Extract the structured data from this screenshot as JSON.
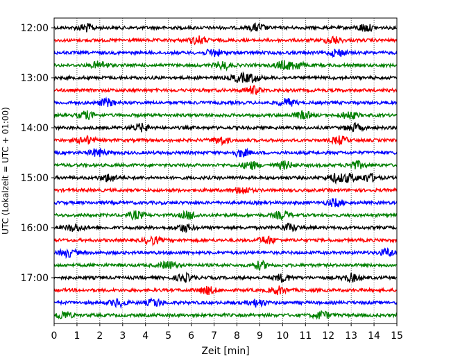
{
  "chart_data": {
    "type": "line",
    "title": "",
    "xlabel": "Zeit  [min]",
    "ylabel": "UTC (Lokalzeit = UTC + 01:00)",
    "xlim": [
      0,
      15
    ],
    "x_ticks": [
      0,
      1,
      2,
      3,
      4,
      5,
      6,
      7,
      8,
      9,
      10,
      11,
      12,
      13,
      14,
      15
    ],
    "y_tick_labels": [
      "12:00",
      "13:00",
      "14:00",
      "15:00",
      "16:00",
      "17:00"
    ],
    "grid": "vertical dotted",
    "legend": "none",
    "trace_interval_min": 15,
    "trace_start": "12:00",
    "trace_colors": [
      "#000000",
      "#ff0000",
      "#0000ff",
      "#008000"
    ],
    "traces": [
      {
        "start": "12:00",
        "events_min": [
          1.4,
          8.9,
          13.6
        ]
      },
      {
        "start": "12:15",
        "events_min": [
          6.3,
          12.2
        ]
      },
      {
        "start": "12:30",
        "events_min": [
          7.0,
          12.4
        ]
      },
      {
        "start": "12:45",
        "events_min": [
          2.0,
          7.4,
          10.0,
          10.6
        ]
      },
      {
        "start": "13:00",
        "events_min": [
          8.1,
          8.7
        ]
      },
      {
        "start": "13:15",
        "events_min": [
          8.7
        ]
      },
      {
        "start": "13:30",
        "events_min": [
          2.3,
          10.2
        ]
      },
      {
        "start": "13:45",
        "events_min": [
          1.4,
          10.9,
          12.9
        ]
      },
      {
        "start": "14:00",
        "events_min": [
          3.8,
          13.1
        ]
      },
      {
        "start": "14:15",
        "events_min": [
          1.4,
          7.3,
          12.5
        ]
      },
      {
        "start": "14:30",
        "events_min": [
          1.9,
          8.2
        ]
      },
      {
        "start": "14:45",
        "events_min": [
          8.6,
          10.1,
          13.2
        ]
      },
      {
        "start": "15:00",
        "events_min": [
          2.4,
          12.3,
          12.9,
          13.8
        ]
      },
      {
        "start": "15:15",
        "events_min": [
          8.2
        ]
      },
      {
        "start": "15:30",
        "events_min": [
          12.3
        ]
      },
      {
        "start": "15:45",
        "events_min": [
          3.6,
          5.9,
          10.0
        ]
      },
      {
        "start": "16:00",
        "events_min": [
          0.9,
          5.7,
          10.3
        ]
      },
      {
        "start": "16:15",
        "events_min": [
          4.3,
          9.3
        ]
      },
      {
        "start": "16:30",
        "events_min": [
          0.6,
          14.6
        ]
      },
      {
        "start": "16:45",
        "events_min": [
          5.0,
          9.0
        ]
      },
      {
        "start": "17:00",
        "events_min": [
          5.7,
          10.0,
          13.0
        ]
      },
      {
        "start": "17:15",
        "events_min": [
          6.7,
          9.8
        ]
      },
      {
        "start": "17:30",
        "events_min": [
          2.8,
          4.4,
          8.9
        ]
      },
      {
        "start": "17:45",
        "events_min": [
          0.4,
          11.7
        ]
      }
    ]
  }
}
